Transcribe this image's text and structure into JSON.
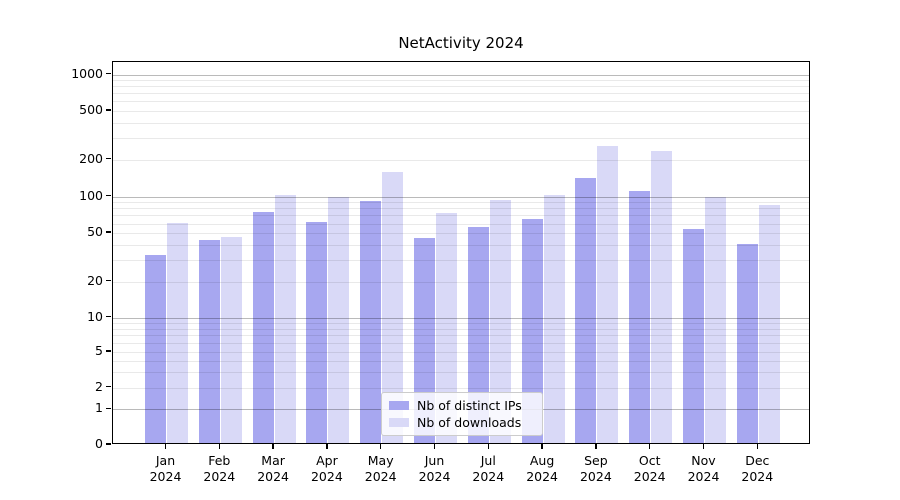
{
  "chart_data": {
    "type": "bar",
    "title": "NetActivity 2024",
    "scale": "symlog",
    "grid": true,
    "legend_position": "lower center",
    "ylim": [
      0,
      1000
    ],
    "y_ticks": [
      0,
      1,
      2,
      5,
      10,
      20,
      50,
      100,
      200,
      500,
      1000
    ],
    "categories": [
      "Jan 2024",
      "Feb 2024",
      "Mar 2024",
      "Apr 2024",
      "May 2024",
      "Jun 2024",
      "Jul 2024",
      "Aug 2024",
      "Sep 2024",
      "Oct 2024",
      "Nov 2024",
      "Dec 2024"
    ],
    "series": [
      {
        "name": "Nb of distinct IPs",
        "color": "#a7a7f0",
        "values": [
          32,
          42,
          72,
          60,
          88,
          44,
          54,
          63,
          137,
          107,
          52,
          39
        ]
      },
      {
        "name": "Nb of downloads",
        "color": "#d9d9f7",
        "values": [
          58,
          45,
          100,
          95,
          153,
          71,
          90,
          100,
          250,
          225,
          96,
          82
        ]
      }
    ]
  }
}
